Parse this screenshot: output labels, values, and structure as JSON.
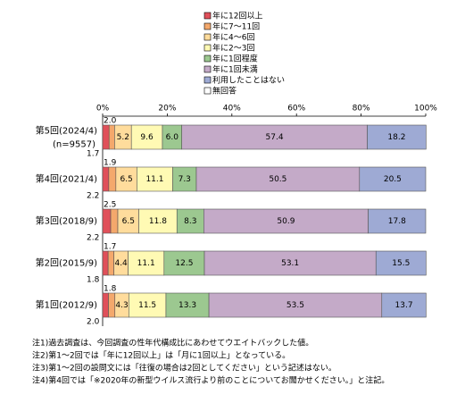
{
  "chart_data": {
    "type": "stacked-bar-horizontal",
    "categories": [
      "第5回(2024/4)",
      "第4回(2021/4)",
      "第3回(2018/9)",
      "第2回(2015/9)",
      "第1回(2012/9)"
    ],
    "sample_size": "(n=9557)",
    "xlim": [
      0,
      100
    ],
    "xticks": [
      {
        "value": 0,
        "label": "0%"
      },
      {
        "value": 20,
        "label": "20%"
      },
      {
        "value": 40,
        "label": "40%"
      },
      {
        "value": 60,
        "label": "60%"
      },
      {
        "value": 80,
        "label": "80%"
      },
      {
        "value": 100,
        "label": "100%"
      }
    ],
    "series": [
      {
        "name": "年に12回以上",
        "color": "#e0505a",
        "values": [
          2.0,
          1.9,
          2.5,
          1.7,
          1.8
        ],
        "value_labels": [
          "2.0",
          "1.9",
          "2.5",
          "1.7",
          "1.8"
        ]
      },
      {
        "name": "年に7～11回",
        "color": "#f4a86c",
        "values": [
          1.7,
          2.2,
          2.2,
          1.8,
          2.0
        ],
        "value_labels": [
          "1.7",
          "2.2",
          "2.2",
          "1.8",
          "2.0"
        ]
      },
      {
        "name": "年に4～6回",
        "color": "#ffdc9c",
        "values": [
          5.2,
          6.5,
          6.5,
          4.4,
          4.3
        ]
      },
      {
        "name": "年に2～3回",
        "color": "#fffab4",
        "values": [
          9.6,
          11.1,
          11.8,
          11.1,
          11.5
        ]
      },
      {
        "name": "年に1回程度",
        "color": "#9cc890",
        "values": [
          6.0,
          7.3,
          8.3,
          12.5,
          13.3
        ],
        "value_labels": [
          "6.0",
          "7.3",
          "8.3",
          "12.5",
          "13.3"
        ]
      },
      {
        "name": "年に1回未満",
        "color": "#c4aac8",
        "values": [
          57.4,
          50.5,
          50.9,
          53.1,
          53.5
        ]
      },
      {
        "name": "利用したことはない",
        "color": "#9eaad4",
        "values": [
          18.2,
          20.5,
          17.8,
          15.5,
          13.7
        ]
      },
      {
        "name": "無回答",
        "color": "#ffffff",
        "values": [
          null,
          null,
          null,
          null,
          null
        ]
      }
    ]
  },
  "notes": [
    "注1)過去調査は、今回調査の性年代構成比にあわせてウエイトバックした値。",
    "注2)第1～2回では「年に12回以上」は「月に1回以上」となっている。",
    "注3)第1～2回の設問文には「往復の場合は2回としてください」という記述はない。",
    "注4)第4回では「※2020年の新型ウイルス流行より前のことについてお聞かせください。」と注記。"
  ]
}
